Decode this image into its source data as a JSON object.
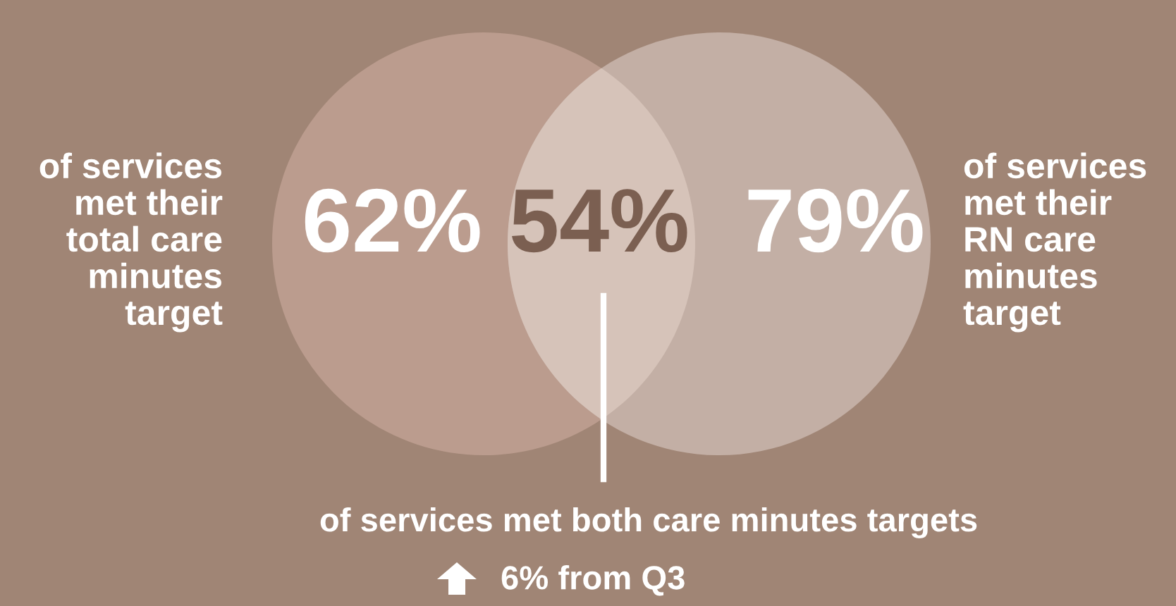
{
  "chart_data": {
    "type": "other",
    "categories": [
      "of services\nmet their\ntotal care\nminutes\ntarget",
      "of services met both care minutes targets",
      "of services\nmet their\nRN care\nminutes\ntarget"
    ],
    "values": [
      62,
      54,
      79
    ],
    "value_labels": [
      "62%",
      "54%",
      "79%"
    ],
    "colors": [
      "#bb9c8e",
      "#d6c3b9",
      "#c3afa5"
    ],
    "annotations": [
      "6% from Q3"
    ]
  }
}
